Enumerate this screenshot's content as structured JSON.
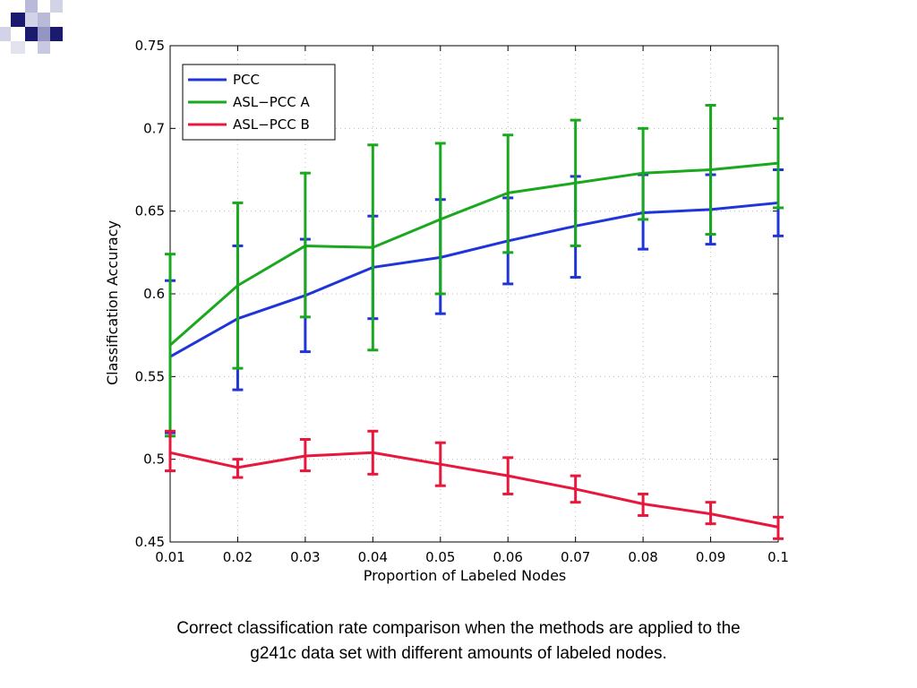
{
  "slide": {
    "caption_line1": "Correct classification rate comparison when the methods are applied to the",
    "caption_line2": "g241c data set with different amounts of labeled nodes."
  },
  "chart_data": {
    "type": "line",
    "xlabel": "Proportion of Labeled Nodes",
    "ylabel": "Classification Accuracy",
    "xlim": [
      0.01,
      0.1
    ],
    "ylim": [
      0.45,
      0.75
    ],
    "x": [
      0.01,
      0.02,
      0.03,
      0.04,
      0.05,
      0.06,
      0.07,
      0.08,
      0.09,
      0.1
    ],
    "x_tick_labels": [
      "0.01",
      "0.02",
      "0.03",
      "0.04",
      "0.05",
      "0.06",
      "0.07",
      "0.08",
      "0.09",
      "0.1"
    ],
    "y_ticks": [
      0.45,
      0.5,
      0.55,
      0.6,
      0.65,
      0.7,
      0.75
    ],
    "y_tick_labels": [
      "0.45",
      "0.5",
      "0.55",
      "0.6",
      "0.65",
      "0.7",
      "0.75"
    ],
    "grid": true,
    "legend_position": "top-left",
    "series": [
      {
        "name": "PCC",
        "color": "#1f35d8",
        "values": [
          0.562,
          0.585,
          0.599,
          0.616,
          0.622,
          0.632,
          0.641,
          0.649,
          0.651,
          0.655
        ],
        "lower": [
          0.516,
          0.542,
          0.565,
          0.585,
          0.588,
          0.606,
          0.61,
          0.627,
          0.63,
          0.635
        ],
        "upper": [
          0.608,
          0.629,
          0.633,
          0.647,
          0.657,
          0.658,
          0.671,
          0.672,
          0.672,
          0.675
        ]
      },
      {
        "name": "ASL−PCC A",
        "color": "#19a81e",
        "values": [
          0.569,
          0.605,
          0.629,
          0.628,
          0.645,
          0.661,
          0.667,
          0.673,
          0.675,
          0.679
        ],
        "lower": [
          0.514,
          0.555,
          0.586,
          0.566,
          0.6,
          0.625,
          0.629,
          0.645,
          0.636,
          0.652
        ],
        "upper": [
          0.624,
          0.655,
          0.673,
          0.69,
          0.691,
          0.696,
          0.705,
          0.7,
          0.714,
          0.706
        ]
      },
      {
        "name": "ASL−PCC B",
        "color": "#e8173c",
        "values": [
          0.504,
          0.495,
          0.502,
          0.504,
          0.497,
          0.49,
          0.482,
          0.473,
          0.467,
          0.459
        ],
        "lower": [
          0.493,
          0.489,
          0.493,
          0.491,
          0.484,
          0.479,
          0.474,
          0.466,
          0.461,
          0.452
        ],
        "upper": [
          0.517,
          0.5,
          0.512,
          0.517,
          0.51,
          0.501,
          0.49,
          0.479,
          0.474,
          0.465
        ]
      }
    ]
  }
}
